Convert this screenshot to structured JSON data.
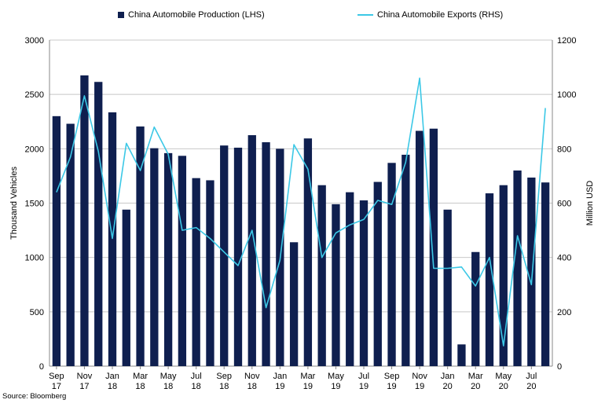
{
  "chart_data": {
    "type": "bar+line",
    "categories": [
      "Sep 17",
      "Oct 17",
      "Nov 17",
      "Dec 17",
      "Jan 18",
      "Feb 18",
      "Mar 18",
      "Apr 18",
      "May 18",
      "Jun 18",
      "Jul 18",
      "Aug 18",
      "Sep 18",
      "Oct 18",
      "Nov 18",
      "Dec 18",
      "Jan 19",
      "Feb 19",
      "Mar 19",
      "Apr 19",
      "May 19",
      "Jun 19",
      "Jul 19",
      "Aug 19",
      "Sep 19",
      "Oct 19",
      "Nov 19",
      "Dec 19",
      "Jan 20",
      "Feb 20",
      "Mar 20",
      "Apr 20",
      "May 20",
      "Jun 20",
      "Jul 20",
      "Aug 20"
    ],
    "x_tick_labels": [
      {
        "index": 0,
        "line1": "Sep",
        "line2": "17"
      },
      {
        "index": 2,
        "line1": "Nov",
        "line2": "17"
      },
      {
        "index": 4,
        "line1": "Jan",
        "line2": "18"
      },
      {
        "index": 6,
        "line1": "Mar",
        "line2": "18"
      },
      {
        "index": 8,
        "line1": "May",
        "line2": "18"
      },
      {
        "index": 10,
        "line1": "Jul",
        "line2": "18"
      },
      {
        "index": 12,
        "line1": "Sep",
        "line2": "18"
      },
      {
        "index": 14,
        "line1": "Nov",
        "line2": "18"
      },
      {
        "index": 16,
        "line1": "Jan",
        "line2": "19"
      },
      {
        "index": 18,
        "line1": "Mar",
        "line2": "19"
      },
      {
        "index": 20,
        "line1": "May",
        "line2": "19"
      },
      {
        "index": 22,
        "line1": "Jul",
        "line2": "19"
      },
      {
        "index": 24,
        "line1": "Sep",
        "line2": "19"
      },
      {
        "index": 26,
        "line1": "Nov",
        "line2": "19"
      },
      {
        "index": 28,
        "line1": "Jan",
        "line2": "20"
      },
      {
        "index": 30,
        "line1": "Mar",
        "line2": "20"
      },
      {
        "index": 32,
        "line1": "May",
        "line2": "20"
      },
      {
        "index": 34,
        "line1": "Jul",
        "line2": "20"
      }
    ],
    "series": [
      {
        "name": "China Automobile Production (LHS)",
        "type": "bar",
        "axis": "left",
        "color": "#0f1f4f",
        "values": [
          2300,
          2230,
          2675,
          2615,
          2335,
          1440,
          2205,
          2005,
          1960,
          1935,
          1730,
          1710,
          2030,
          2010,
          2125,
          2060,
          2000,
          1140,
          2095,
          1665,
          1490,
          1600,
          1525,
          1695,
          1870,
          1945,
          2165,
          2185,
          1440,
          200,
          1050,
          1590,
          1665,
          1800,
          1735,
          1690
        ]
      },
      {
        "name": "China Automobile Exports (RHS)",
        "type": "line",
        "axis": "right",
        "color": "#3cc8e6",
        "values": [
          640,
          770,
          995,
          790,
          470,
          820,
          720,
          880,
          780,
          500,
          510,
          470,
          420,
          370,
          500,
          215,
          390,
          815,
          725,
          400,
          490,
          520,
          540,
          610,
          595,
          750,
          1060,
          360,
          360,
          365,
          295,
          400,
          75,
          480,
          300,
          950
        ]
      }
    ],
    "left_axis": {
      "label": "Thousand Vehicles",
      "min": 0,
      "max": 3000,
      "ticks": [
        0,
        500,
        1000,
        1500,
        2000,
        2500,
        3000
      ]
    },
    "right_axis": {
      "label": "Million USD",
      "min": 0,
      "max": 1200,
      "ticks": [
        0,
        200,
        400,
        600,
        800,
        1000,
        1200
      ]
    },
    "grid": "horizontal",
    "legend_position": "top"
  },
  "source": "Source: Bloomberg"
}
